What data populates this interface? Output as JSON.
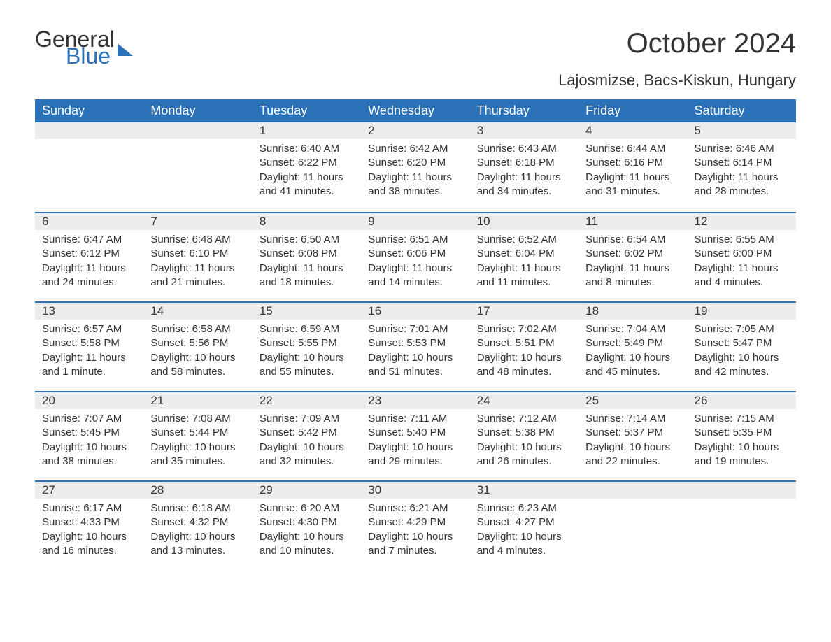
{
  "brand": {
    "part1": "General",
    "part2": "Blue"
  },
  "title": "October 2024",
  "location": "Lajosmizse, Bacs-Kiskun, Hungary",
  "colors": {
    "header_bg": "#2b71b8",
    "header_text": "#ffffff",
    "daynum_bg": "#ececec",
    "border_top": "#2b71b8",
    "body_bg": "#ffffff",
    "text": "#333333"
  },
  "typography": {
    "title_fontsize": 40,
    "subtitle_fontsize": 22,
    "header_fontsize": 18,
    "daynum_fontsize": 17,
    "body_fontsize": 15
  },
  "weekdays": [
    "Sunday",
    "Monday",
    "Tuesday",
    "Wednesday",
    "Thursday",
    "Friday",
    "Saturday"
  ],
  "weeks": [
    [
      {
        "day": "",
        "lines": []
      },
      {
        "day": "",
        "lines": []
      },
      {
        "day": "1",
        "lines": [
          "Sunrise: 6:40 AM",
          "Sunset: 6:22 PM",
          "Daylight: 11 hours",
          "and 41 minutes."
        ]
      },
      {
        "day": "2",
        "lines": [
          "Sunrise: 6:42 AM",
          "Sunset: 6:20 PM",
          "Daylight: 11 hours",
          "and 38 minutes."
        ]
      },
      {
        "day": "3",
        "lines": [
          "Sunrise: 6:43 AM",
          "Sunset: 6:18 PM",
          "Daylight: 11 hours",
          "and 34 minutes."
        ]
      },
      {
        "day": "4",
        "lines": [
          "Sunrise: 6:44 AM",
          "Sunset: 6:16 PM",
          "Daylight: 11 hours",
          "and 31 minutes."
        ]
      },
      {
        "day": "5",
        "lines": [
          "Sunrise: 6:46 AM",
          "Sunset: 6:14 PM",
          "Daylight: 11 hours",
          "and 28 minutes."
        ]
      }
    ],
    [
      {
        "day": "6",
        "lines": [
          "Sunrise: 6:47 AM",
          "Sunset: 6:12 PM",
          "Daylight: 11 hours",
          "and 24 minutes."
        ]
      },
      {
        "day": "7",
        "lines": [
          "Sunrise: 6:48 AM",
          "Sunset: 6:10 PM",
          "Daylight: 11 hours",
          "and 21 minutes."
        ]
      },
      {
        "day": "8",
        "lines": [
          "Sunrise: 6:50 AM",
          "Sunset: 6:08 PM",
          "Daylight: 11 hours",
          "and 18 minutes."
        ]
      },
      {
        "day": "9",
        "lines": [
          "Sunrise: 6:51 AM",
          "Sunset: 6:06 PM",
          "Daylight: 11 hours",
          "and 14 minutes."
        ]
      },
      {
        "day": "10",
        "lines": [
          "Sunrise: 6:52 AM",
          "Sunset: 6:04 PM",
          "Daylight: 11 hours",
          "and 11 minutes."
        ]
      },
      {
        "day": "11",
        "lines": [
          "Sunrise: 6:54 AM",
          "Sunset: 6:02 PM",
          "Daylight: 11 hours",
          "and 8 minutes."
        ]
      },
      {
        "day": "12",
        "lines": [
          "Sunrise: 6:55 AM",
          "Sunset: 6:00 PM",
          "Daylight: 11 hours",
          "and 4 minutes."
        ]
      }
    ],
    [
      {
        "day": "13",
        "lines": [
          "Sunrise: 6:57 AM",
          "Sunset: 5:58 PM",
          "Daylight: 11 hours",
          "and 1 minute."
        ]
      },
      {
        "day": "14",
        "lines": [
          "Sunrise: 6:58 AM",
          "Sunset: 5:56 PM",
          "Daylight: 10 hours",
          "and 58 minutes."
        ]
      },
      {
        "day": "15",
        "lines": [
          "Sunrise: 6:59 AM",
          "Sunset: 5:55 PM",
          "Daylight: 10 hours",
          "and 55 minutes."
        ]
      },
      {
        "day": "16",
        "lines": [
          "Sunrise: 7:01 AM",
          "Sunset: 5:53 PM",
          "Daylight: 10 hours",
          "and 51 minutes."
        ]
      },
      {
        "day": "17",
        "lines": [
          "Sunrise: 7:02 AM",
          "Sunset: 5:51 PM",
          "Daylight: 10 hours",
          "and 48 minutes."
        ]
      },
      {
        "day": "18",
        "lines": [
          "Sunrise: 7:04 AM",
          "Sunset: 5:49 PM",
          "Daylight: 10 hours",
          "and 45 minutes."
        ]
      },
      {
        "day": "19",
        "lines": [
          "Sunrise: 7:05 AM",
          "Sunset: 5:47 PM",
          "Daylight: 10 hours",
          "and 42 minutes."
        ]
      }
    ],
    [
      {
        "day": "20",
        "lines": [
          "Sunrise: 7:07 AM",
          "Sunset: 5:45 PM",
          "Daylight: 10 hours",
          "and 38 minutes."
        ]
      },
      {
        "day": "21",
        "lines": [
          "Sunrise: 7:08 AM",
          "Sunset: 5:44 PM",
          "Daylight: 10 hours",
          "and 35 minutes."
        ]
      },
      {
        "day": "22",
        "lines": [
          "Sunrise: 7:09 AM",
          "Sunset: 5:42 PM",
          "Daylight: 10 hours",
          "and 32 minutes."
        ]
      },
      {
        "day": "23",
        "lines": [
          "Sunrise: 7:11 AM",
          "Sunset: 5:40 PM",
          "Daylight: 10 hours",
          "and 29 minutes."
        ]
      },
      {
        "day": "24",
        "lines": [
          "Sunrise: 7:12 AM",
          "Sunset: 5:38 PM",
          "Daylight: 10 hours",
          "and 26 minutes."
        ]
      },
      {
        "day": "25",
        "lines": [
          "Sunrise: 7:14 AM",
          "Sunset: 5:37 PM",
          "Daylight: 10 hours",
          "and 22 minutes."
        ]
      },
      {
        "day": "26",
        "lines": [
          "Sunrise: 7:15 AM",
          "Sunset: 5:35 PM",
          "Daylight: 10 hours",
          "and 19 minutes."
        ]
      }
    ],
    [
      {
        "day": "27",
        "lines": [
          "Sunrise: 6:17 AM",
          "Sunset: 4:33 PM",
          "Daylight: 10 hours",
          "and 16 minutes."
        ]
      },
      {
        "day": "28",
        "lines": [
          "Sunrise: 6:18 AM",
          "Sunset: 4:32 PM",
          "Daylight: 10 hours",
          "and 13 minutes."
        ]
      },
      {
        "day": "29",
        "lines": [
          "Sunrise: 6:20 AM",
          "Sunset: 4:30 PM",
          "Daylight: 10 hours",
          "and 10 minutes."
        ]
      },
      {
        "day": "30",
        "lines": [
          "Sunrise: 6:21 AM",
          "Sunset: 4:29 PM",
          "Daylight: 10 hours",
          "and 7 minutes."
        ]
      },
      {
        "day": "31",
        "lines": [
          "Sunrise: 6:23 AM",
          "Sunset: 4:27 PM",
          "Daylight: 10 hours",
          "and 4 minutes."
        ]
      },
      {
        "day": "",
        "lines": []
      },
      {
        "day": "",
        "lines": []
      }
    ]
  ]
}
